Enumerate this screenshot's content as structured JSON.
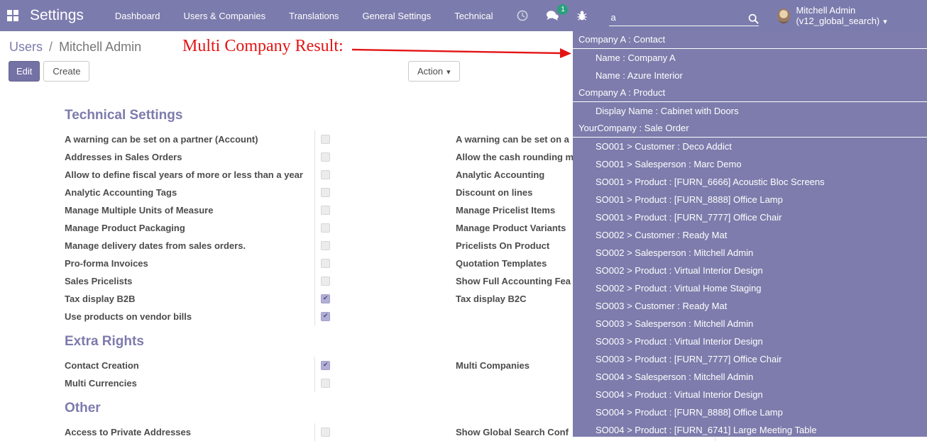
{
  "colors": {
    "accent": "#7c7bad",
    "annotation_red": "#e41414",
    "badge_green": "#28a17c"
  },
  "navbar": {
    "app_title": "Settings",
    "menu": [
      "Dashboard",
      "Users & Companies",
      "Translations",
      "General Settings",
      "Technical"
    ],
    "message_badge": "1",
    "search_value": "a",
    "user_name": "Mitchell Admin (v12_global_search)"
  },
  "breadcrumb": {
    "parent": "Users",
    "separator": "/",
    "current": "Mitchell Admin"
  },
  "annotation": {
    "text": "Multi Company Result:"
  },
  "buttons": {
    "edit": "Edit",
    "create": "Create",
    "action": "Action"
  },
  "sections": [
    {
      "title": "Technical Settings",
      "left": [
        {
          "label": "A warning can be set on a partner (Account)",
          "checked": false
        },
        {
          "label": "Addresses in Sales Orders",
          "checked": false
        },
        {
          "label": "Allow to define fiscal years of more or less than a year",
          "checked": false
        },
        {
          "label": "Analytic Accounting Tags",
          "checked": false
        },
        {
          "label": "Manage Multiple Units of Measure",
          "checked": false
        },
        {
          "label": "Manage Product Packaging",
          "checked": false
        },
        {
          "label": "Manage delivery dates from sales orders.",
          "checked": false
        },
        {
          "label": "Pro-forma Invoices",
          "checked": false
        },
        {
          "label": "Sales Pricelists",
          "checked": false
        },
        {
          "label": "Tax display B2B",
          "checked": true
        },
        {
          "label": "Use products on vendor bills",
          "checked": true
        }
      ],
      "right": [
        {
          "label": "A warning can be set on a",
          "checked": false
        },
        {
          "label": "Allow the cash rounding m",
          "checked": false
        },
        {
          "label": "Analytic Accounting",
          "checked": false
        },
        {
          "label": "Discount on lines",
          "checked": false
        },
        {
          "label": "Manage Pricelist Items",
          "checked": false
        },
        {
          "label": "Manage Product Variants",
          "checked": false
        },
        {
          "label": "Pricelists On Product",
          "checked": false
        },
        {
          "label": "Quotation Templates",
          "checked": false
        },
        {
          "label": "Show Full Accounting Fea",
          "checked": false
        },
        {
          "label": "Tax display B2C",
          "checked": false
        }
      ]
    },
    {
      "title": "Extra Rights",
      "left": [
        {
          "label": "Contact Creation",
          "checked": true
        },
        {
          "label": "Multi Currencies",
          "checked": false
        }
      ],
      "right": [
        {
          "label": "Multi Companies",
          "checked": false
        }
      ]
    },
    {
      "title": "Other",
      "left": [
        {
          "label": "Access to Private Addresses",
          "checked": false
        }
      ],
      "right": [
        {
          "label": "Show Global Search Conf",
          "checked": false
        }
      ]
    }
  ],
  "search_dropdown": {
    "rows": [
      {
        "type": "header",
        "text": "Company A : Contact"
      },
      {
        "type": "item",
        "text": "Name : Company A"
      },
      {
        "type": "item",
        "text": "Name : Azure Interior"
      },
      {
        "type": "header",
        "text": "Company A : Product"
      },
      {
        "type": "item",
        "text": "Display Name : Cabinet with Doors"
      },
      {
        "type": "header",
        "text": "YourCompany : Sale Order"
      },
      {
        "type": "item",
        "text": "SO001 > Customer : Deco Addict"
      },
      {
        "type": "item",
        "text": "SO001 > Salesperson : Marc Demo"
      },
      {
        "type": "item",
        "text": "SO001 > Product : [FURN_6666] Acoustic Bloc Screens"
      },
      {
        "type": "item",
        "text": "SO001 > Product : [FURN_8888] Office Lamp"
      },
      {
        "type": "item",
        "text": "SO001 > Product : [FURN_7777] Office Chair"
      },
      {
        "type": "item",
        "text": "SO002 > Customer : Ready Mat"
      },
      {
        "type": "item",
        "text": "SO002 > Salesperson : Mitchell Admin"
      },
      {
        "type": "item",
        "text": "SO002 > Product : Virtual Interior Design"
      },
      {
        "type": "item",
        "text": "SO002 > Product : Virtual Home Staging"
      },
      {
        "type": "item",
        "text": "SO003 > Customer : Ready Mat"
      },
      {
        "type": "item",
        "text": "SO003 > Salesperson : Mitchell Admin"
      },
      {
        "type": "item",
        "text": "SO003 > Product : Virtual Interior Design"
      },
      {
        "type": "item",
        "text": "SO003 > Product : [FURN_7777] Office Chair"
      },
      {
        "type": "item",
        "text": "SO004 > Salesperson : Mitchell Admin"
      },
      {
        "type": "item",
        "text": "SO004 > Product : Virtual Interior Design"
      },
      {
        "type": "item",
        "text": "SO004 > Product : [FURN_8888] Office Lamp"
      },
      {
        "type": "item",
        "text": "SO004 > Product : [FURN_6741] Large Meeting Table"
      }
    ]
  }
}
